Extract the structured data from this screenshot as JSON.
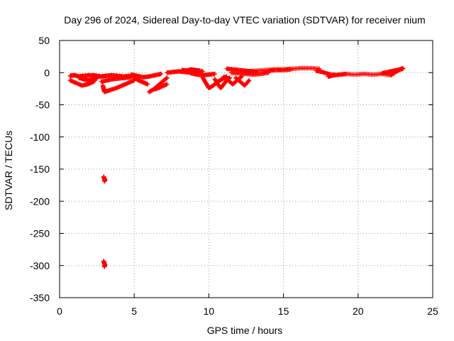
{
  "chart_data": {
    "type": "scatter",
    "title": "Day 296 of 2024, Sidereal Day-to-day VTEC variation (SDTVAR) for receiver nium",
    "xlabel": "GPS time / hours",
    "ylabel": "SDTVAR / TECUs",
    "xlim": [
      0,
      25
    ],
    "ylim": [
      -350,
      50
    ],
    "x_ticks": [
      0,
      5,
      10,
      15,
      20,
      25
    ],
    "y_ticks": [
      50,
      0,
      -50,
      -100,
      -150,
      -200,
      -250,
      -300,
      -350
    ],
    "grid": true,
    "marker": "+",
    "series": [
      {
        "name": "SDTVAR",
        "color": "#ff0000",
        "tracks": [
          {
            "x": [
              0.7,
              1.0,
              1.3,
              1.6,
              2.0,
              2.4
            ],
            "y": [
              -5,
              -4,
              -6,
              -5,
              -4,
              -6
            ]
          },
          {
            "x": [
              0.7,
              1.1,
              1.5,
              1.9,
              2.3
            ],
            "y": [
              -12,
              -16,
              -20,
              -18,
              -14
            ]
          },
          {
            "x": [
              1.3,
              1.6,
              1.9,
              2.2,
              2.5
            ],
            "y": [
              -8,
              -10,
              -12,
              -11,
              -9
            ]
          },
          {
            "x": [
              2.2,
              2.5,
              2.8,
              3.1,
              3.5,
              3.9,
              4.3,
              4.7
            ],
            "y": [
              -4,
              -5,
              -6,
              -5,
              -4,
              -5,
              -6,
              -5
            ]
          },
          {
            "x": [
              2.8,
              3.2,
              3.6,
              4.0,
              4.4,
              4.8
            ],
            "y": [
              -14,
              -12,
              -10,
              -9,
              -8,
              -7
            ]
          },
          {
            "x": [
              3.0,
              3.4,
              3.8,
              4.2,
              4.6,
              5.0
            ],
            "y": [
              -30,
              -27,
              -24,
              -20,
              -16,
              -12
            ]
          },
          {
            "x": [
              2.9,
              2.95,
              3.0
            ],
            "y": [
              -20,
              -25,
              -29
            ]
          },
          {
            "x": [
              4.8,
              5.2,
              5.6,
              6.0,
              6.4,
              6.8
            ],
            "y": [
              -3,
              -5,
              -7,
              -6,
              -4,
              -2
            ]
          },
          {
            "x": [
              5.0,
              5.3,
              5.6,
              5.9
            ],
            "y": [
              -8,
              -12,
              -15,
              -18
            ]
          },
          {
            "x": [
              6.0,
              6.3,
              6.6,
              6.9,
              7.2
            ],
            "y": [
              -30,
              -26,
              -20,
              -14,
              -8
            ]
          },
          {
            "x": [
              6.4,
              6.8,
              7.2
            ],
            "y": [
              -26,
              -22,
              -18
            ]
          },
          {
            "x": [
              7.2,
              7.6,
              8.0,
              8.4,
              8.8,
              9.2,
              9.6
            ],
            "y": [
              0,
              1,
              2,
              1,
              0,
              1,
              2
            ]
          },
          {
            "x": [
              8.2,
              8.5,
              8.8,
              9.1,
              9.4
            ],
            "y": [
              4,
              3,
              5,
              4,
              3
            ]
          },
          {
            "x": [
              8.8,
              9.2,
              9.6,
              10.0,
              10.4
            ],
            "y": [
              -1,
              -3,
              -4,
              -3,
              -2
            ]
          },
          {
            "x": [
              9.6,
              9.8,
              10.0,
              10.3,
              10.6,
              10.9,
              11.2
            ],
            "y": [
              -8,
              -16,
              -24,
              -20,
              -14,
              -10,
              -6
            ]
          },
          {
            "x": [
              10.4,
              10.6,
              10.8,
              11.0,
              11.2,
              11.4
            ],
            "y": [
              -10,
              -18,
              -24,
              -18,
              -12,
              -8
            ]
          },
          {
            "x": [
              11.0,
              11.3,
              11.6,
              11.9,
              12.2
            ],
            "y": [
              -6,
              -12,
              -18,
              -12,
              -6
            ]
          },
          {
            "x": [
              11.8,
              12.1,
              12.4,
              12.7
            ],
            "y": [
              -8,
              -14,
              -20,
              -12
            ]
          },
          {
            "x": [
              11.2,
              11.6,
              12.0,
              12.4,
              12.8,
              13.2
            ],
            "y": [
              6,
              5,
              4,
              3,
              2,
              1
            ]
          },
          {
            "x": [
              11.5,
              12.0,
              12.5,
              13.0,
              13.5,
              14.0
            ],
            "y": [
              0,
              -1,
              -2,
              -3,
              -2,
              0
            ]
          },
          {
            "x": [
              12.6,
              13.2,
              13.8,
              14.4,
              15.0,
              15.6,
              16.2,
              16.8,
              17.4
            ],
            "y": [
              2,
              3,
              4,
              5,
              5,
              6,
              7,
              7,
              6
            ]
          },
          {
            "x": [
              14.0,
              14.5,
              15.0,
              15.5
            ],
            "y": [
              3,
              4,
              4,
              5
            ]
          },
          {
            "x": [
              17.2,
              17.6,
              18.0,
              18.4,
              18.8,
              19.2
            ],
            "y": [
              3,
              1,
              -2,
              -4,
              -3,
              -2
            ]
          },
          {
            "x": [
              18.0,
              18.2,
              18.4
            ],
            "y": [
              -6,
              -5,
              -3
            ]
          },
          {
            "x": [
              19.2,
              19.8,
              20.4,
              21.0,
              21.6,
              22.2
            ],
            "y": [
              -2,
              -3,
              -2,
              -3,
              -2,
              -4
            ]
          },
          {
            "x": [
              21.6,
              22.0,
              22.4,
              22.8,
              23.0
            ],
            "y": [
              -1,
              1,
              3,
              5,
              6
            ]
          },
          {
            "x": [
              22.2,
              22.6,
              23.0
            ],
            "y": [
              -4,
              2,
              7
            ]
          },
          {
            "x": [
              2.95,
              3.0,
              3.05,
              3.0
            ],
            "y": [
              -162,
              -165,
              -167,
              -169
            ]
          },
          {
            "x": [
              2.95,
              3.0,
              3.05,
              3.0
            ],
            "y": [
              -293,
              -297,
              -299,
              -302
            ]
          }
        ]
      }
    ]
  }
}
